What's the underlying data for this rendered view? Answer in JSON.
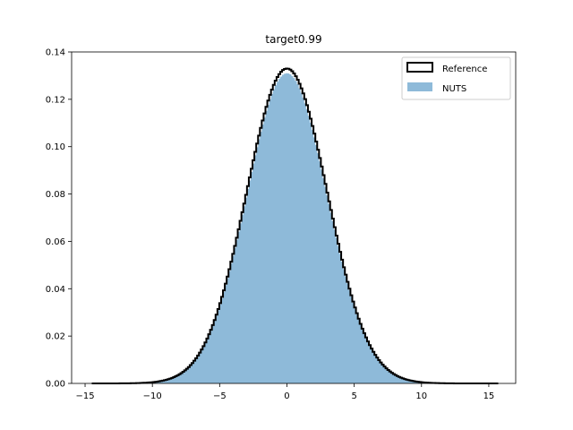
{
  "chart_data": {
    "type": "histogram",
    "title": "target0.99",
    "xlabel": "",
    "ylabel": "",
    "xlim": [
      -16.0,
      17.0
    ],
    "ylim": [
      0,
      0.14
    ],
    "x_ticks": [
      -15,
      -10,
      -5,
      0,
      5,
      10,
      15
    ],
    "x_tick_labels": [
      "−15",
      "−10",
      "−5",
      "0",
      "5",
      "10",
      "15"
    ],
    "y_ticks": [
      0.0,
      0.02,
      0.04,
      0.06,
      0.08,
      0.1,
      0.12,
      0.14
    ],
    "y_tick_labels": [
      "0.00",
      "0.02",
      "0.04",
      "0.06",
      "0.08",
      "0.10",
      "0.12",
      "0.14"
    ],
    "grid": false,
    "legend_position": "top-right",
    "series": [
      {
        "name": "Reference",
        "style": "step",
        "color": "#000000",
        "bin_start": -14.5,
        "bin_end": 15.7,
        "distribution": "normal",
        "mean": 0.0,
        "sd": 3.0,
        "peak_density": 0.133
      },
      {
        "name": "NUTS",
        "style": "filled",
        "color": "#8ebad9",
        "bin_start": -14.5,
        "bin_end": 15.7,
        "distribution": "normal",
        "mean": 0.0,
        "sd": 3.0,
        "peak_density": 0.131
      }
    ]
  }
}
